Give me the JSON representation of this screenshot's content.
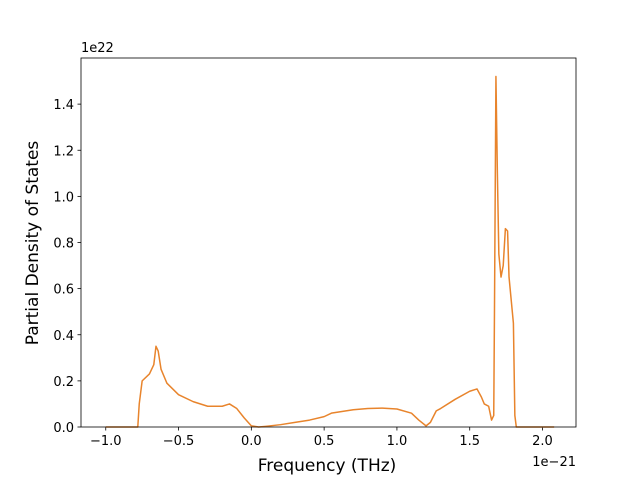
{
  "chart_data": {
    "type": "line",
    "x_label": "Frequency (THz)",
    "y_label": "Partial Density of States",
    "x_offset_text": "1e−21",
    "y_offset_text": "1e22",
    "xlim": [
      -1.17,
      2.23
    ],
    "ylim": [
      0,
      1.6
    ],
    "xticks": [
      {
        "value": -1,
        "label": "−1.0"
      },
      {
        "value": -0.5,
        "label": "−0.5"
      },
      {
        "value": 0,
        "label": "0.0"
      },
      0.5,
      {
        "value": 1,
        "label": "1.0"
      },
      1.5,
      {
        "value": 2,
        "label": "2.0"
      }
    ],
    "yticks": [
      {
        "value": 0,
        "label": "0.0"
      },
      0.2,
      0.4,
      0.6,
      0.8,
      {
        "value": 1,
        "label": "1.0"
      },
      1.2,
      1.4
    ],
    "x": [
      -1.0,
      -0.78,
      -0.77,
      -0.75,
      -0.7,
      -0.67,
      -0.655,
      -0.64,
      -0.62,
      -0.58,
      -0.5,
      -0.4,
      -0.3,
      -0.2,
      -0.15,
      -0.1,
      -0.05,
      0.0,
      0.05,
      0.1,
      0.2,
      0.3,
      0.4,
      0.5,
      0.55,
      0.6,
      0.7,
      0.8,
      0.9,
      1.0,
      1.1,
      1.15,
      1.2,
      1.23,
      1.27,
      1.3,
      1.4,
      1.5,
      1.55,
      1.58,
      1.6,
      1.63,
      1.65,
      1.665,
      1.67,
      1.68,
      1.69,
      1.7,
      1.715,
      1.73,
      1.745,
      1.76,
      1.77,
      1.8,
      1.81,
      1.82,
      2.08
    ],
    "series": [
      {
        "color": "#e8842c",
        "values": [
          0,
          0,
          0.1,
          0.2,
          0.23,
          0.27,
          0.35,
          0.33,
          0.25,
          0.19,
          0.14,
          0.11,
          0.09,
          0.09,
          0.1,
          0.08,
          0.04,
          0.005,
          0,
          0.003,
          0.01,
          0.02,
          0.03,
          0.045,
          0.06,
          0.065,
          0.075,
          0.08,
          0.082,
          0.078,
          0.06,
          0.03,
          0.005,
          0.02,
          0.07,
          0.08,
          0.12,
          0.155,
          0.165,
          0.13,
          0.1,
          0.09,
          0.03,
          0.05,
          0.5,
          1.52,
          1.1,
          0.75,
          0.65,
          0.7,
          0.86,
          0.85,
          0.65,
          0.45,
          0.05,
          0,
          0
        ]
      }
    ]
  }
}
